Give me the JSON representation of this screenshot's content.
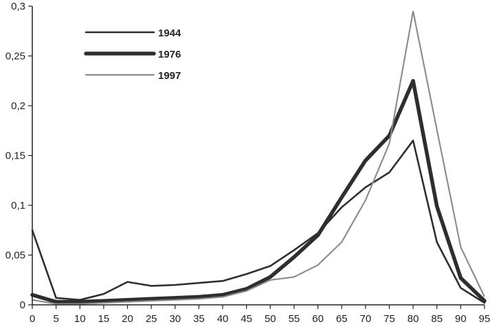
{
  "chart_data": {
    "type": "line",
    "x": [
      0,
      5,
      10,
      15,
      20,
      25,
      30,
      35,
      40,
      45,
      50,
      55,
      60,
      65,
      70,
      75,
      80,
      85,
      90,
      95
    ],
    "xticks": [
      "0",
      "5",
      "10",
      "15",
      "20",
      "25",
      "30",
      "35",
      "40",
      "45",
      "50",
      "55",
      "60",
      "65",
      "70",
      "75",
      "80",
      "85",
      "90",
      "95"
    ],
    "yticks": [
      "0",
      "0,05",
      "0,1",
      "0,15",
      "0,2",
      "0,25",
      "0,3"
    ],
    "ylim": [
      0,
      0.3
    ],
    "xlim": [
      0,
      95
    ],
    "grid": false,
    "legend": "top-left",
    "series": [
      {
        "name": "1944",
        "color": "#2e2e2e",
        "style": "medium",
        "values": [
          0.075,
          0.007,
          0.005,
          0.011,
          0.023,
          0.019,
          0.02,
          0.022,
          0.024,
          0.031,
          0.039,
          0.055,
          0.072,
          0.098,
          0.118,
          0.133,
          0.165,
          0.063,
          0.017,
          0.002
        ]
      },
      {
        "name": "1976",
        "color": "#2e2e2e",
        "style": "thick",
        "values": [
          0.01,
          0.003,
          0.003,
          0.004,
          0.005,
          0.006,
          0.007,
          0.008,
          0.01,
          0.016,
          0.028,
          0.048,
          0.07,
          0.108,
          0.145,
          0.17,
          0.225,
          0.099,
          0.027,
          0.004
        ]
      },
      {
        "name": "1997",
        "color": "#8a8a8a",
        "style": "dotted",
        "values": [
          0.005,
          0.001,
          0.001,
          0.002,
          0.003,
          0.004,
          0.005,
          0.006,
          0.008,
          0.014,
          0.025,
          0.028,
          0.04,
          0.063,
          0.105,
          0.162,
          0.295,
          0.176,
          0.058,
          0.008
        ]
      }
    ]
  }
}
